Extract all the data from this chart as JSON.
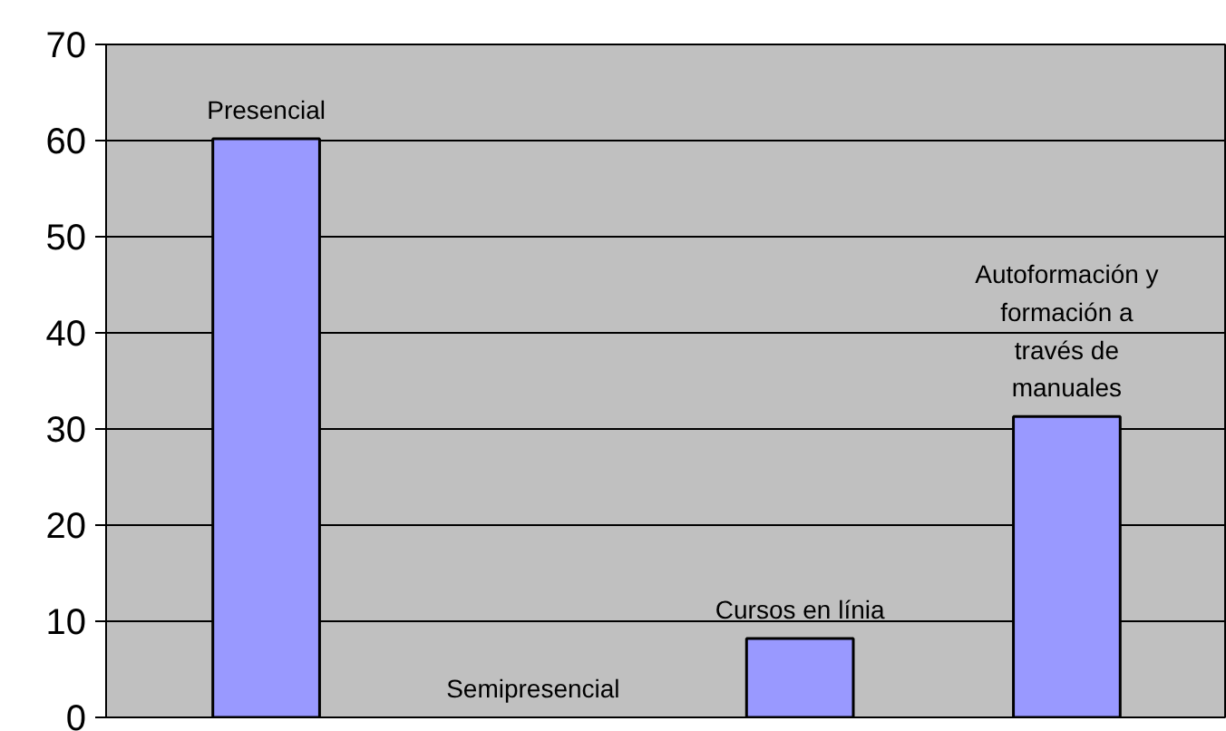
{
  "chart_data": {
    "type": "bar",
    "categories": [
      "Presencial",
      "Semipresencial",
      "Cursos en línia",
      "Autoformación y formación a través de manuales"
    ],
    "values": [
      60.2,
      0,
      8.2,
      31.3
    ],
    "color": "#9999ff",
    "ylim": [
      0,
      70
    ],
    "yticks": [
      0,
      10,
      20,
      30,
      40,
      50,
      60,
      70
    ],
    "grid": "y",
    "tick_labels": "y"
  }
}
